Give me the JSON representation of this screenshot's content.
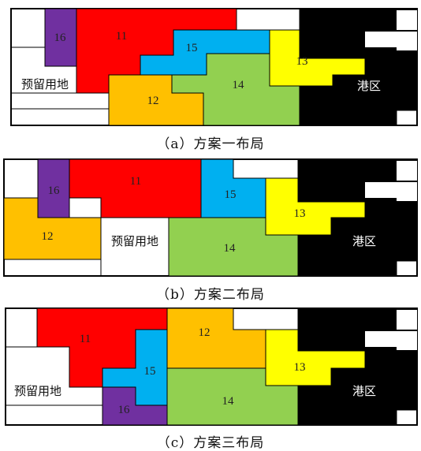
{
  "palette": {
    "b11": "#ff0000",
    "b12": "#ffc000",
    "b13": "#ffff00",
    "b14": "#92d050",
    "b15": "#00b0f0",
    "b16": "#7030a0",
    "port": "#000000",
    "line": "#000000"
  },
  "panels": [
    {
      "caption": "（a）方案一布局",
      "labels": {
        "b11": "11",
        "b12": "12",
        "b13": "13",
        "b14": "14",
        "b15": "15",
        "b16": "16",
        "reserved": "预留用地",
        "port": "港区"
      }
    },
    {
      "caption": "（b）方案二布局",
      "labels": {
        "b11": "11",
        "b12": "12",
        "b13": "13",
        "b14": "14",
        "b15": "15",
        "b16": "16",
        "reserved": "预留用地",
        "port": "港区"
      }
    },
    {
      "caption": "（c）方案三布局",
      "labels": {
        "b11": "11",
        "b12": "12",
        "b13": "13",
        "b14": "14",
        "b15": "15",
        "b16": "16",
        "reserved": "预留用地",
        "port": "港区"
      }
    }
  ]
}
